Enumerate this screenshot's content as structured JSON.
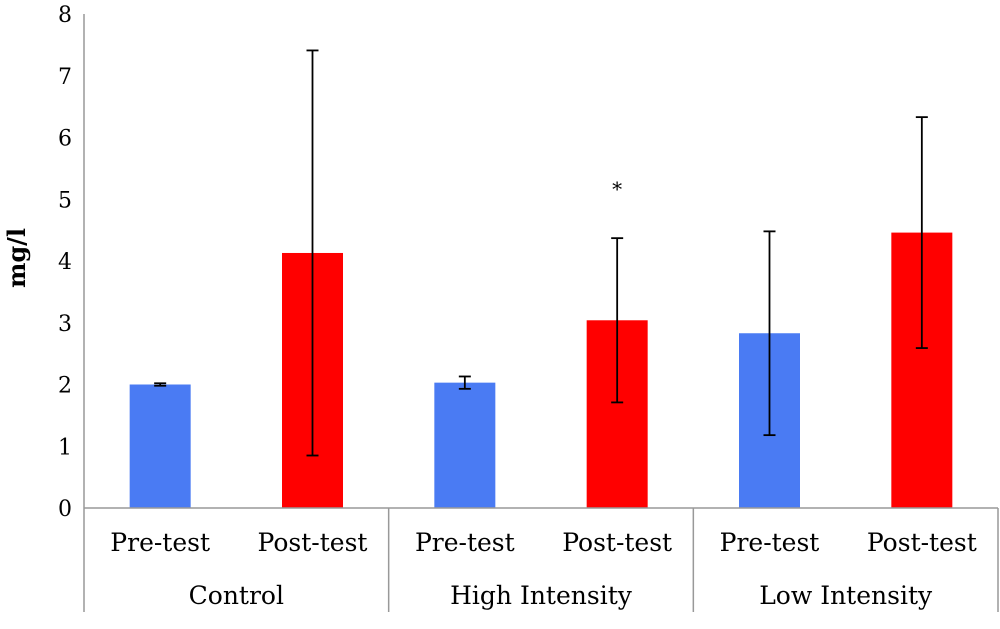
{
  "chart_data": {
    "type": "bar",
    "title": "",
    "ylabel": "mg/l",
    "xlabel": "",
    "ylim": [
      0,
      8
    ],
    "yticks": [
      0,
      1,
      2,
      3,
      4,
      5,
      6,
      7,
      8
    ],
    "grid": false,
    "groups": [
      "Control",
      "High Intensity",
      "Low Intensity"
    ],
    "subcategories": [
      "Pre-test",
      "Post-test"
    ],
    "colors": {
      "Pre-test": "#4a7bf3",
      "Post-test": "#ff0000"
    },
    "bars": [
      {
        "group": "Control",
        "sub": "Pre-test",
        "value": 2.0,
        "err_low": 1.98,
        "err_high": 2.02
      },
      {
        "group": "Control",
        "sub": "Post-test",
        "value": 4.13,
        "err_low": 0.85,
        "err_high": 7.41
      },
      {
        "group": "High Intensity",
        "sub": "Pre-test",
        "value": 2.03,
        "err_low": 1.93,
        "err_high": 2.13
      },
      {
        "group": "High Intensity",
        "sub": "Post-test",
        "value": 3.04,
        "err_low": 1.71,
        "err_high": 4.37,
        "annotation": "*"
      },
      {
        "group": "Low Intensity",
        "sub": "Pre-test",
        "value": 2.83,
        "err_low": 1.18,
        "err_high": 4.48
      },
      {
        "group": "Low Intensity",
        "sub": "Post-test",
        "value": 4.46,
        "err_low": 2.59,
        "err_high": 6.33
      }
    ]
  }
}
